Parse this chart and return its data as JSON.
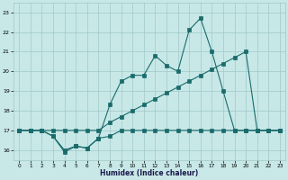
{
  "background_color": "#c8e8e8",
  "grid_color": "#a0c8c8",
  "line_color": "#1a6b6b",
  "xlabel": "Humidex (Indice chaleur)",
  "xlim": [
    -0.5,
    23.5
  ],
  "ylim": [
    15.5,
    23.5
  ],
  "yticks": [
    16,
    17,
    18,
    19,
    20,
    21,
    22,
    23
  ],
  "xticks": [
    0,
    1,
    2,
    3,
    4,
    5,
    6,
    7,
    8,
    9,
    10,
    11,
    12,
    13,
    14,
    15,
    16,
    17,
    18,
    19,
    20,
    21,
    22,
    23
  ],
  "line1_x": [
    0,
    1,
    2,
    3,
    4,
    5,
    6,
    7,
    8,
    9,
    10,
    11,
    12,
    13,
    14,
    15,
    16,
    17,
    18,
    19,
    20,
    21,
    22,
    23
  ],
  "line1_y": [
    17.0,
    17.0,
    17.0,
    16.7,
    15.9,
    16.2,
    16.1,
    16.6,
    16.7,
    17.0,
    17.0,
    17.0,
    17.0,
    17.0,
    17.0,
    17.0,
    17.0,
    17.0,
    17.0,
    17.0,
    17.0,
    17.0,
    17.0,
    17.0
  ],
  "line2_x": [
    0,
    1,
    2,
    3,
    4,
    5,
    6,
    7,
    8,
    9,
    10,
    11,
    12,
    13,
    14,
    15,
    16,
    17,
    18,
    19,
    20,
    21,
    22,
    23
  ],
  "line2_y": [
    17.0,
    17.0,
    17.0,
    17.0,
    17.0,
    17.0,
    17.0,
    17.0,
    17.4,
    17.7,
    18.0,
    18.3,
    18.6,
    18.9,
    19.2,
    19.5,
    19.8,
    20.1,
    20.4,
    20.7,
    21.0,
    17.0,
    17.0,
    17.0
  ],
  "line3_x": [
    0,
    1,
    2,
    3,
    4,
    5,
    6,
    7,
    8,
    9,
    10,
    11,
    12,
    13,
    14,
    15,
    16,
    17,
    18,
    19,
    20,
    21,
    22,
    23
  ],
  "line3_y": [
    17.0,
    17.0,
    17.0,
    16.7,
    16.0,
    16.2,
    16.1,
    16.6,
    18.3,
    19.5,
    19.8,
    19.8,
    20.8,
    20.3,
    20.0,
    22.1,
    22.7,
    21.0,
    19.0,
    17.0,
    17.0,
    17.0,
    17.0,
    17.0
  ]
}
